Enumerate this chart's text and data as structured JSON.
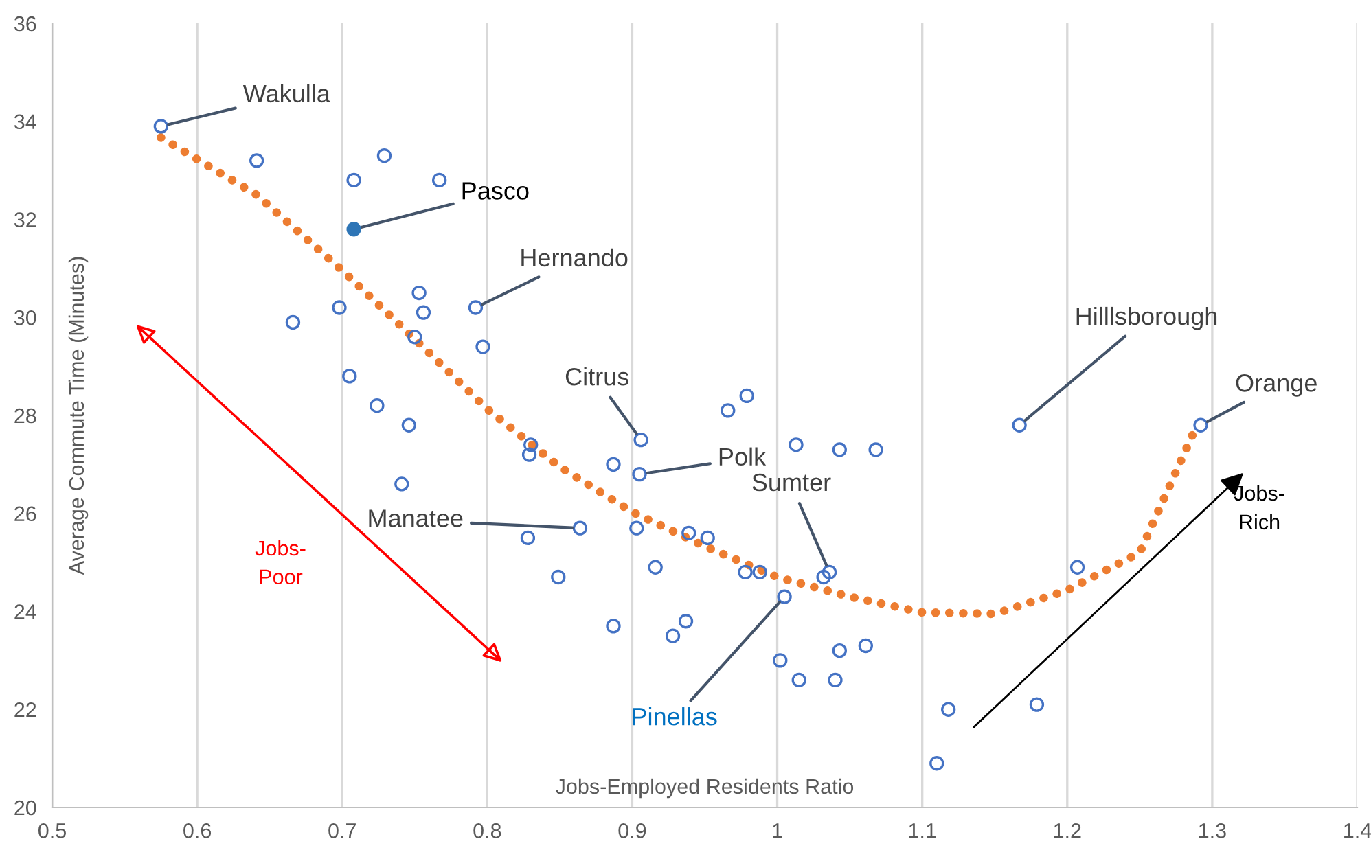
{
  "chart_data": {
    "type": "scatter",
    "xlabel": "Jobs-Employed Residents Ratio",
    "ylabel": "Average Commute Time (Minutes)",
    "xlim": [
      0.5,
      1.4
    ],
    "xticks": [
      0.5,
      0.6,
      0.7,
      0.8,
      0.9,
      1,
      1.1,
      1.2,
      1.3,
      1.4
    ],
    "ylim": [
      20,
      36
    ],
    "yticks": [
      20,
      22,
      24,
      26,
      28,
      30,
      32,
      34,
      36
    ],
    "grid": "x",
    "legend": false,
    "series": [
      {
        "color": "#4472c4",
        "marker": "circle",
        "x": [
          0.575,
          0.641,
          0.708,
          0.729,
          0.767,
          0.753,
          0.792,
          0.698,
          0.756,
          0.666,
          0.75,
          0.797,
          0.705,
          0.724,
          0.746,
          0.741,
          0.83,
          0.829,
          0.906,
          0.887,
          0.905,
          0.864,
          0.828,
          0.903,
          0.939,
          0.952,
          0.916,
          0.849,
          0.978,
          0.988,
          1.036,
          1.032,
          1.005,
          0.887,
          0.937,
          0.928,
          1.002,
          1.015,
          1.04,
          1.043,
          1.061,
          0.966,
          0.979,
          1.013,
          1.043,
          1.068,
          1.167,
          1.292,
          1.207,
          1.118,
          1.179,
          1.11
        ],
        "values": [
          33.9,
          33.2,
          32.8,
          33.3,
          32.8,
          30.5,
          30.2,
          30.2,
          30.1,
          29.9,
          29.6,
          29.4,
          28.8,
          28.2,
          27.8,
          26.6,
          27.4,
          27.2,
          27.5,
          27.0,
          26.8,
          25.7,
          25.5,
          25.7,
          25.6,
          25.5,
          24.9,
          24.7,
          24.8,
          24.8,
          24.8,
          24.7,
          24.3,
          23.7,
          23.8,
          23.5,
          23.0,
          22.6,
          22.6,
          23.2,
          23.3,
          28.1,
          28.4,
          27.4,
          27.3,
          27.3,
          27.8,
          27.8,
          24.9,
          22.0,
          22.1,
          20.9
        ]
      },
      {
        "color": "#2e75b6",
        "marker": "circle",
        "x": [
          0.708
        ],
        "values": [
          31.8
        ]
      },
      {
        "type": "line",
        "color": "#ed7d31",
        "line_style": "dotted",
        "x": [
          0.575,
          0.641,
          0.7,
          0.75,
          0.8,
          0.85,
          0.9,
          0.95,
          1.0,
          1.05,
          1.1,
          1.15,
          1.2,
          1.25,
          1.29
        ],
        "values": [
          33.67,
          32.5,
          30.96,
          29.56,
          28.13,
          26.95,
          26.03,
          25.33,
          24.7,
          24.3,
          23.98,
          23.95,
          24.43,
          25.2,
          27.84
        ]
      }
    ],
    "annotations": [
      {
        "text": "Wakulla",
        "x": 0.575,
        "y": 33.9
      },
      {
        "text": "Pasco",
        "x": 0.708,
        "y": 31.8
      },
      {
        "text": "Hernando",
        "x": 0.792,
        "y": 30.2
      },
      {
        "text": "Citrus",
        "x": 0.906,
        "y": 27.5
      },
      {
        "text": "Polk",
        "x": 0.905,
        "y": 26.8
      },
      {
        "text": "Manatee",
        "x": 0.864,
        "y": 25.7
      },
      {
        "text": "Sumter",
        "x": 1.036,
        "y": 24.8
      },
      {
        "text": "Pinellas",
        "x": 1.005,
        "y": 24.3
      },
      {
        "text": "Hilllsborough",
        "x": 1.167,
        "y": 27.8
      },
      {
        "text": "Orange",
        "x": 1.292,
        "y": 27.8
      },
      "Jobs-\nPoor",
      "Jobs-\nRich"
    ]
  }
}
